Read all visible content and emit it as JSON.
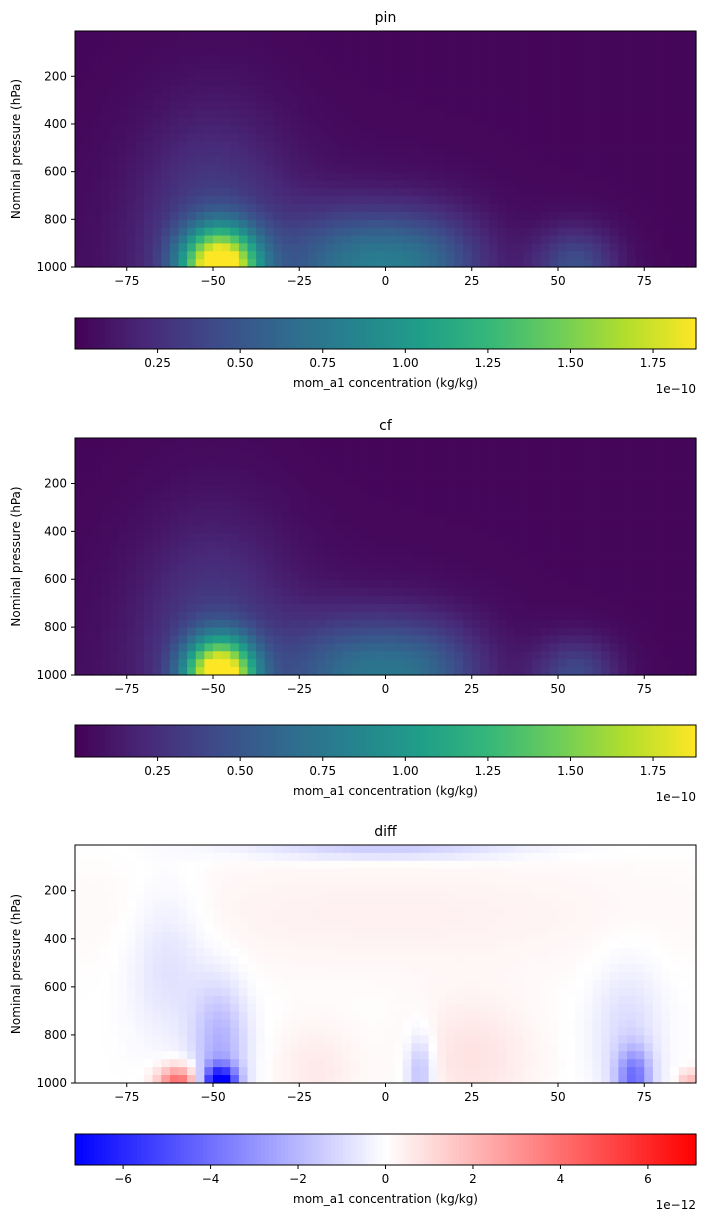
{
  "chart_data": [
    {
      "type": "heatmap",
      "title": "pin",
      "ylabel": "Nominal pressure (hPa)",
      "xlabel": "",
      "xlim": [
        -90,
        90
      ],
      "ylim": [
        1000,
        10
      ],
      "x_ticks": [
        "−75",
        "−50",
        "−25",
        "0",
        "25",
        "50",
        "75"
      ],
      "x_tick_values": [
        -75,
        -50,
        -25,
        0,
        25,
        50,
        75
      ],
      "y_ticks": [
        "200",
        "400",
        "600",
        "800",
        "1000"
      ],
      "y_tick_values": [
        200,
        400,
        600,
        800,
        1000
      ],
      "colormap": "viridis",
      "vmin": 0.0,
      "vmax": 1.88,
      "features": [
        {
          "lat": -48,
          "p": 1000,
          "value": 1.88,
          "width_deg": 11,
          "depth_hPa": 160
        },
        {
          "lat": -10,
          "p": 990,
          "value": 0.55,
          "width_deg": 20,
          "depth_hPa": 230
        },
        {
          "lat": 12,
          "p": 990,
          "value": 0.45,
          "width_deg": 18,
          "depth_hPa": 220
        },
        {
          "lat": 55,
          "p": 1000,
          "value": 0.42,
          "width_deg": 12,
          "depth_hPa": 160
        },
        {
          "lat": -50,
          "p": 850,
          "value": 0.3,
          "width_deg": 22,
          "depth_hPa": 500
        }
      ],
      "colorbar": {
        "label": "mom_a1 concentration (kg/kg)",
        "ticks": [
          "0.25",
          "0.50",
          "0.75",
          "1.00",
          "1.25",
          "1.50",
          "1.75"
        ],
        "tick_values": [
          0.25,
          0.5,
          0.75,
          1.0,
          1.25,
          1.5,
          1.75
        ],
        "offset": "1e−10",
        "min": 0.0,
        "max": 1.88
      }
    },
    {
      "type": "heatmap",
      "title": "cf",
      "ylabel": "Nominal pressure (hPa)",
      "xlabel": "",
      "xlim": [
        -90,
        90
      ],
      "ylim": [
        1000,
        10
      ],
      "x_ticks": [
        "−75",
        "−50",
        "−25",
        "0",
        "25",
        "50",
        "75"
      ],
      "x_tick_values": [
        -75,
        -50,
        -25,
        0,
        25,
        50,
        75
      ],
      "y_ticks": [
        "200",
        "400",
        "600",
        "800",
        "1000"
      ],
      "y_tick_values": [
        200,
        400,
        600,
        800,
        1000
      ],
      "colormap": "viridis",
      "vmin": 0.0,
      "vmax": 1.88,
      "features": [
        {
          "lat": -48,
          "p": 1000,
          "value": 1.88,
          "width_deg": 10,
          "depth_hPa": 150
        },
        {
          "lat": -10,
          "p": 990,
          "value": 0.5,
          "width_deg": 20,
          "depth_hPa": 230
        },
        {
          "lat": 12,
          "p": 990,
          "value": 0.42,
          "width_deg": 18,
          "depth_hPa": 220
        },
        {
          "lat": 55,
          "p": 1000,
          "value": 0.38,
          "width_deg": 12,
          "depth_hPa": 150
        },
        {
          "lat": -50,
          "p": 850,
          "value": 0.28,
          "width_deg": 22,
          "depth_hPa": 500
        }
      ],
      "colorbar": {
        "label": "mom_a1 concentration (kg/kg)",
        "ticks": [
          "0.25",
          "0.50",
          "0.75",
          "1.00",
          "1.25",
          "1.50",
          "1.75"
        ],
        "tick_values": [
          0.25,
          0.5,
          0.75,
          1.0,
          1.25,
          1.5,
          1.75
        ],
        "offset": "1e−10",
        "min": 0.0,
        "max": 1.88
      }
    },
    {
      "type": "heatmap",
      "title": "diff",
      "ylabel": "Nominal pressure (hPa)",
      "xlabel": "",
      "xlim": [
        -90,
        90
      ],
      "ylim": [
        1000,
        10
      ],
      "x_ticks": [
        "−75",
        "−50",
        "−25",
        "0",
        "25",
        "50",
        "75"
      ],
      "x_tick_values": [
        -75,
        -50,
        -25,
        0,
        25,
        50,
        75
      ],
      "y_ticks": [
        "200",
        "400",
        "600",
        "800",
        "1000"
      ],
      "y_tick_values": [
        200,
        400,
        600,
        800,
        1000
      ],
      "colormap": "bwr",
      "vmin": -7.1,
      "vmax": 7.1,
      "features": [
        {
          "lat": -48,
          "p": 1000,
          "value": -7.0,
          "width_deg": 5,
          "depth_hPa": 70
        },
        {
          "lat": -48,
          "p": 850,
          "value": -2.2,
          "width_deg": 8,
          "depth_hPa": 260
        },
        {
          "lat": -60,
          "p": 1000,
          "value": 4.5,
          "width_deg": 6,
          "depth_hPa": 70
        },
        {
          "lat": -63,
          "p": 500,
          "value": -0.9,
          "width_deg": 11,
          "depth_hPa": 320
        },
        {
          "lat": 10,
          "p": 960,
          "value": -2.0,
          "width_deg": 4,
          "depth_hPa": 160
        },
        {
          "lat": 72,
          "p": 980,
          "value": -3.5,
          "width_deg": 5,
          "depth_hPa": 120
        },
        {
          "lat": 70,
          "p": 800,
          "value": -1.0,
          "width_deg": 10,
          "depth_hPa": 300
        },
        {
          "lat": 0,
          "p": 30,
          "value": -1.5,
          "width_deg": 40,
          "depth_hPa": 40
        },
        {
          "lat": 0,
          "p": 300,
          "value": 0.4,
          "width_deg": 90,
          "depth_hPa": 250
        },
        {
          "lat": 25,
          "p": 900,
          "value": 0.8,
          "width_deg": 18,
          "depth_hPa": 250
        },
        {
          "lat": -20,
          "p": 950,
          "value": 0.6,
          "width_deg": 12,
          "depth_hPa": 200
        },
        {
          "lat": 88,
          "p": 995,
          "value": 2.0,
          "width_deg": 3,
          "depth_hPa": 50
        }
      ],
      "colorbar": {
        "label": "mom_a1 concentration (kg/kg)",
        "ticks": [
          "−6",
          "−4",
          "−2",
          "0",
          "2",
          "4",
          "6"
        ],
        "tick_values": [
          -6,
          -4,
          -2,
          0,
          2,
          4,
          6
        ],
        "offset": "1e−12",
        "min": -7.1,
        "max": 7.1
      }
    }
  ]
}
